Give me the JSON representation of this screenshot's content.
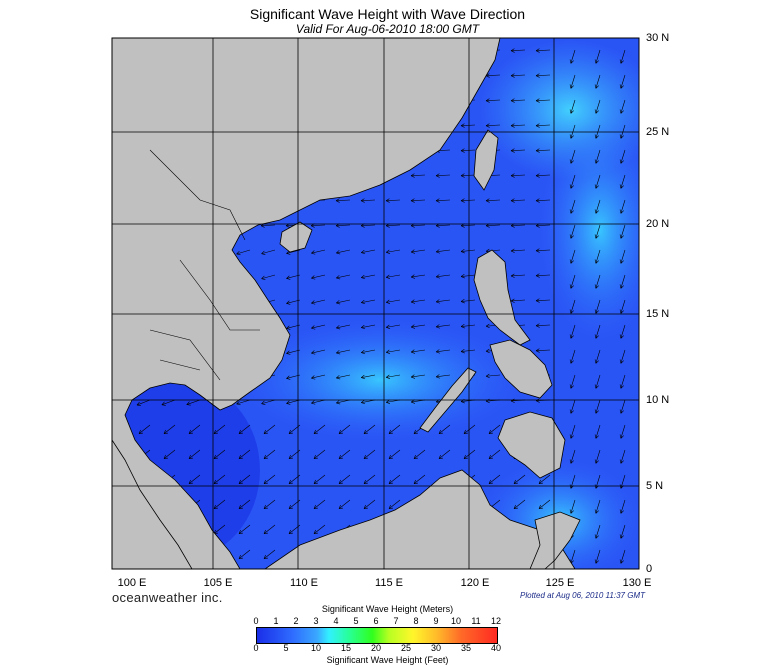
{
  "title": "Significant Wave Height with Wave Direction",
  "subtitle": "Valid For Aug-06-2010 18:00 GMT",
  "lat_labels": [
    "30 N",
    "25 N",
    "20 N",
    "15 N",
    "10 N",
    "5 N",
    "0"
  ],
  "lon_labels": [
    "100 E",
    "105 E",
    "110 E",
    "115 E",
    "120 E",
    "125 E",
    "130 E"
  ],
  "brand": "oceanweather inc.",
  "plotted": "Plotted at Aug 06, 2010 11:37 GMT",
  "colorbar": {
    "meters_title": "Significant Wave Height (Meters)",
    "feet_title": "Significant Wave Height (Feet)",
    "meters_ticks": [
      "0",
      "1",
      "2",
      "3",
      "4",
      "5",
      "6",
      "7",
      "8",
      "9",
      "10",
      "11",
      "12"
    ],
    "feet_ticks": [
      "0",
      "5",
      "10",
      "15",
      "20",
      "25",
      "30",
      "35",
      "40"
    ]
  },
  "colors": {
    "land": "#c0c0c0",
    "sea_low": "#1f3df0",
    "sea_mid": "#2e6cff",
    "sea_high": "#38b4ff",
    "sea_peak": "#3fe0ff"
  }
}
